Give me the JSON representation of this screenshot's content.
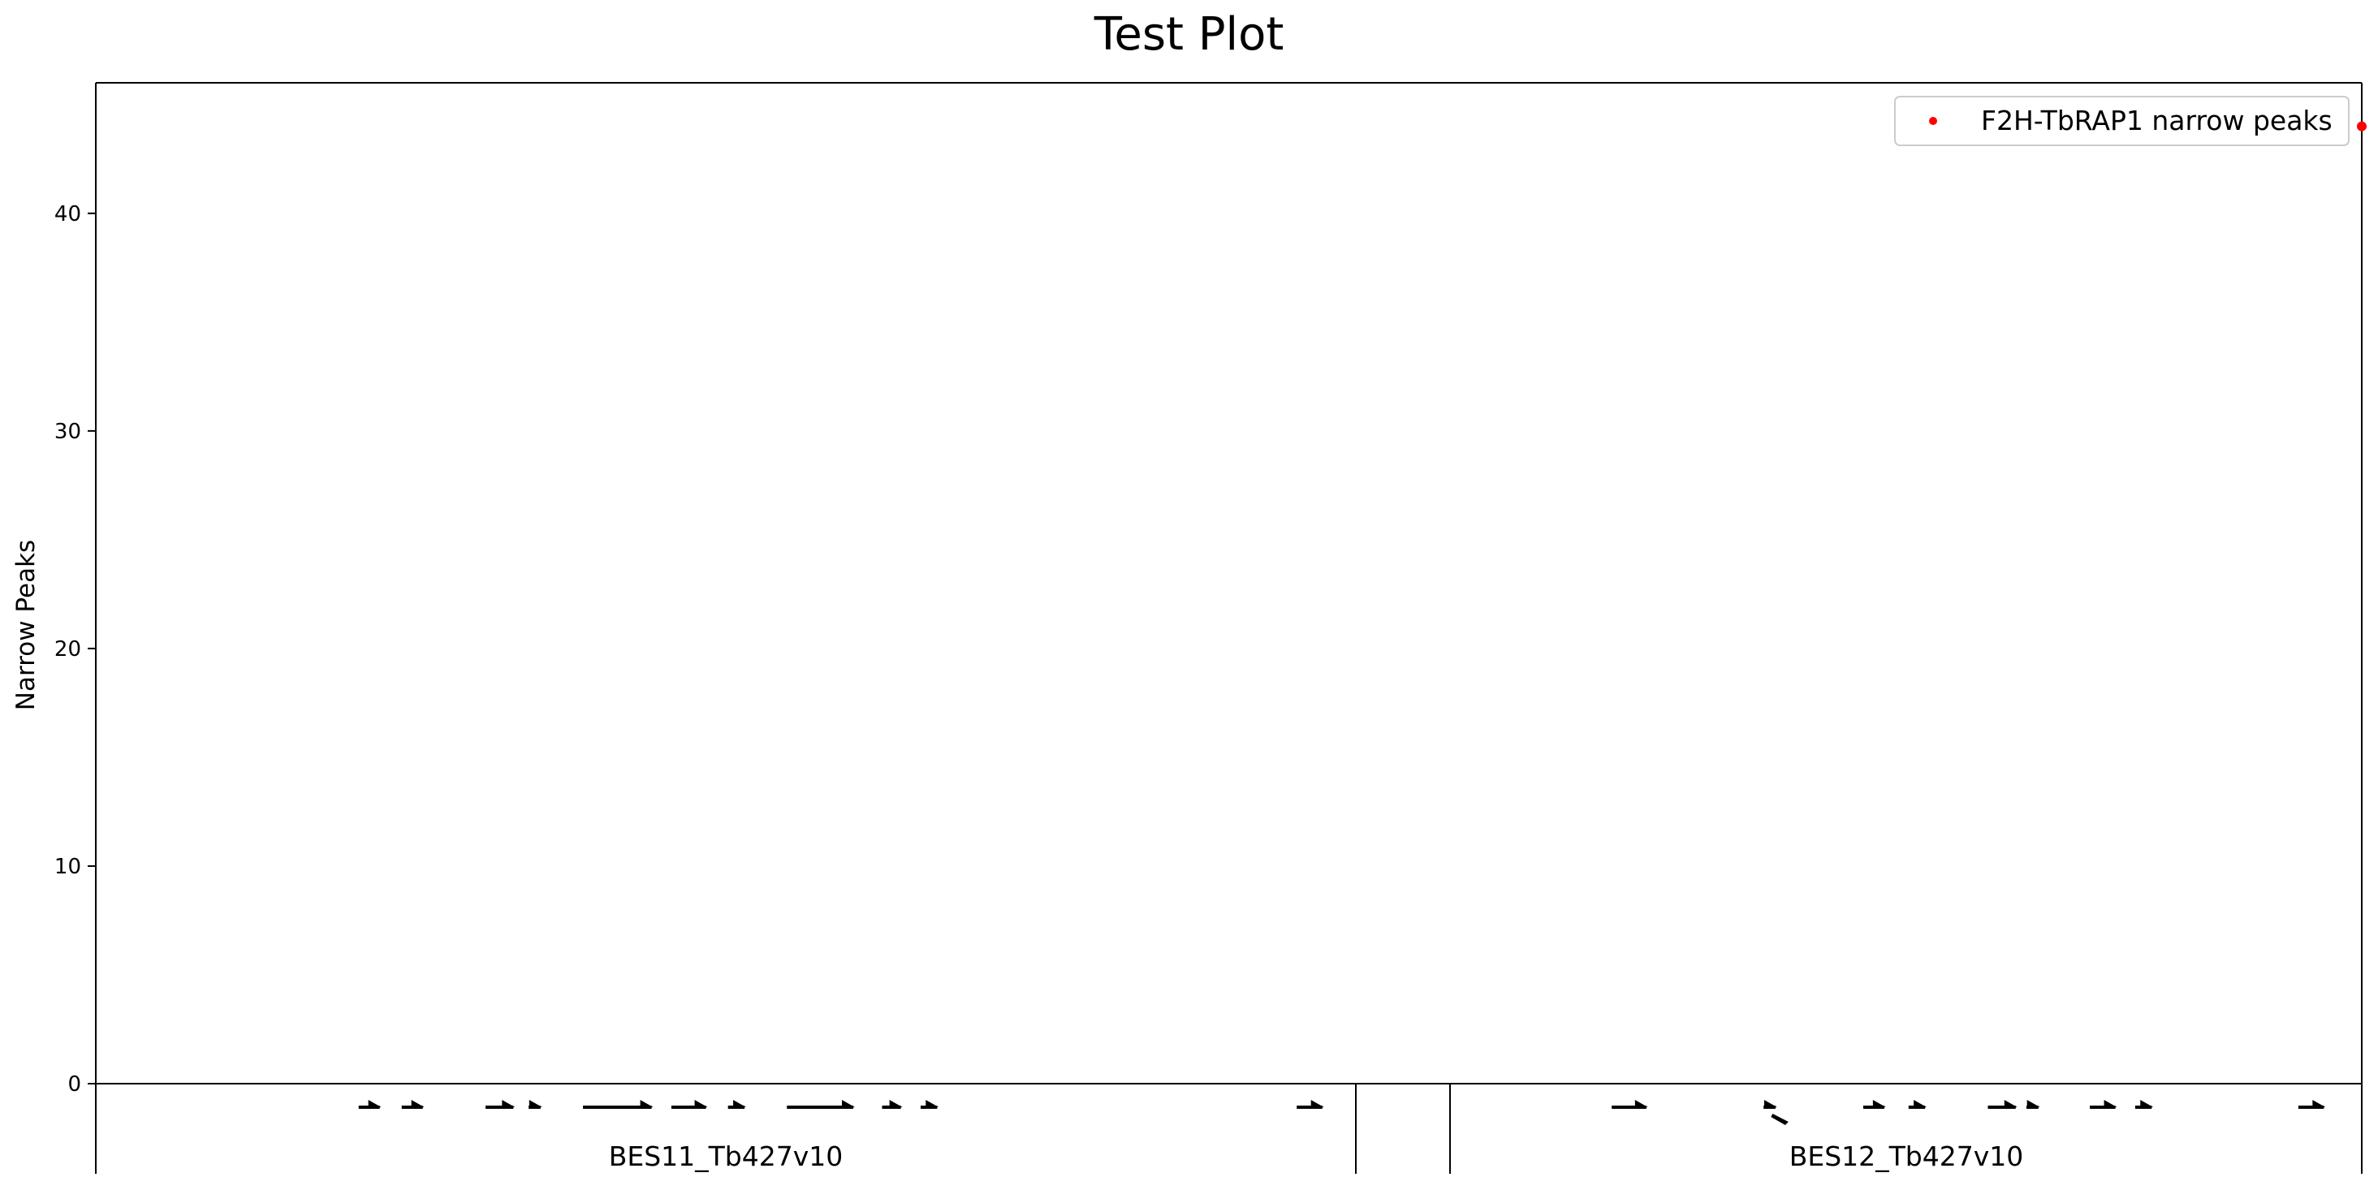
{
  "chart_data": {
    "type": "scatter",
    "title": "Test Plot",
    "ylabel": "Narrow Peaks",
    "xlabel": "",
    "ylim": [
      0,
      46
    ],
    "yticks": [
      0,
      10,
      20,
      30,
      40
    ],
    "grid": false,
    "legend_position": "top-right",
    "series": [
      {
        "name": "F2H-TbRAP1 narrow peaks",
        "color": "#ff0000",
        "points": [
          {
            "x": 1.0,
            "y": 44
          }
        ]
      }
    ],
    "regions": [
      {
        "label": "BES11_Tb427v10"
      },
      {
        "label": "BES12_Tb427v10"
      }
    ],
    "gene_annotations": [
      {
        "start": 0.116,
        "end": 0.126,
        "strand": "+"
      },
      {
        "start": 0.135,
        "end": 0.145,
        "strand": "+"
      },
      {
        "start": 0.172,
        "end": 0.185,
        "strand": "+"
      },
      {
        "start": 0.191,
        "end": 0.197,
        "strand": "+"
      },
      {
        "start": 0.215,
        "end": 0.246,
        "strand": "+"
      },
      {
        "start": 0.254,
        "end": 0.27,
        "strand": "+"
      },
      {
        "start": 0.279,
        "end": 0.287,
        "strand": "+"
      },
      {
        "start": 0.305,
        "end": 0.335,
        "strand": "+"
      },
      {
        "start": 0.347,
        "end": 0.356,
        "strand": "+"
      },
      {
        "start": 0.364,
        "end": 0.372,
        "strand": "+"
      },
      {
        "start": 0.53,
        "end": 0.542,
        "strand": "+"
      },
      {
        "start": 0.669,
        "end": 0.685,
        "strand": "+"
      },
      {
        "start": 0.736,
        "end": 0.742,
        "strand": "+"
      },
      {
        "start": 0.74,
        "end": 0.747,
        "strand": "-"
      },
      {
        "start": 0.78,
        "end": 0.79,
        "strand": "+"
      },
      {
        "start": 0.8,
        "end": 0.808,
        "strand": "+"
      },
      {
        "start": 0.835,
        "end": 0.848,
        "strand": "+"
      },
      {
        "start": 0.852,
        "end": 0.858,
        "strand": "+"
      },
      {
        "start": 0.88,
        "end": 0.892,
        "strand": "+"
      },
      {
        "start": 0.9,
        "end": 0.908,
        "strand": "+"
      },
      {
        "start": 0.972,
        "end": 0.984,
        "strand": "+"
      }
    ]
  }
}
